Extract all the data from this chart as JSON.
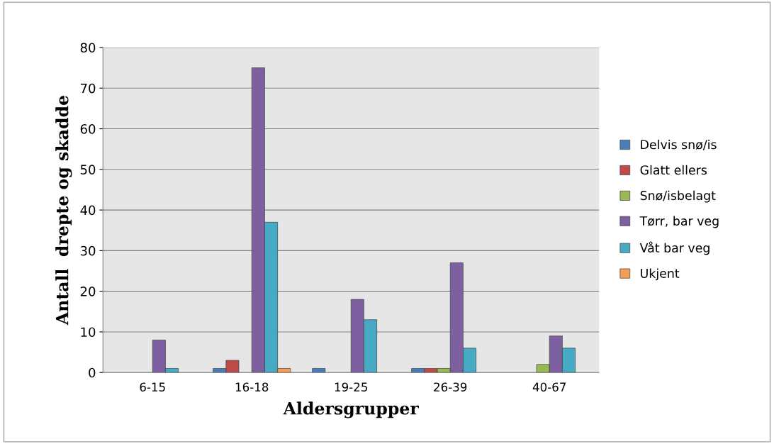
{
  "chart_data": {
    "type": "bar",
    "xlabel": "Aldersgrupper",
    "ylabel": "Antall  drepte og skadde",
    "categories": [
      "6-15",
      "16-18",
      "19-25",
      "26-39",
      "40-67"
    ],
    "series": [
      {
        "name": "Delvis snø/is",
        "color": "#4a7ebb",
        "values": [
          0,
          1,
          1,
          1,
          0
        ]
      },
      {
        "name": "Glatt ellers",
        "color": "#be4b48",
        "values": [
          0,
          3,
          0,
          1,
          0
        ]
      },
      {
        "name": "Snø/isbelagt",
        "color": "#98b954",
        "values": [
          0,
          0,
          0,
          1,
          2
        ]
      },
      {
        "name": "Tørr, bar veg",
        "color": "#7d60a0",
        "values": [
          8,
          75,
          18,
          27,
          9
        ]
      },
      {
        "name": "Våt bar veg",
        "color": "#46aac5",
        "values": [
          1,
          37,
          13,
          6,
          6
        ]
      },
      {
        "name": "Ukjent",
        "color": "#f59d56",
        "values": [
          0,
          1,
          0,
          0,
          0
        ]
      }
    ],
    "ylim": [
      0,
      80
    ],
    "yticks": [
      0,
      10,
      20,
      30,
      40,
      50,
      60,
      70,
      80
    ],
    "grid": "y",
    "legend": "right"
  }
}
